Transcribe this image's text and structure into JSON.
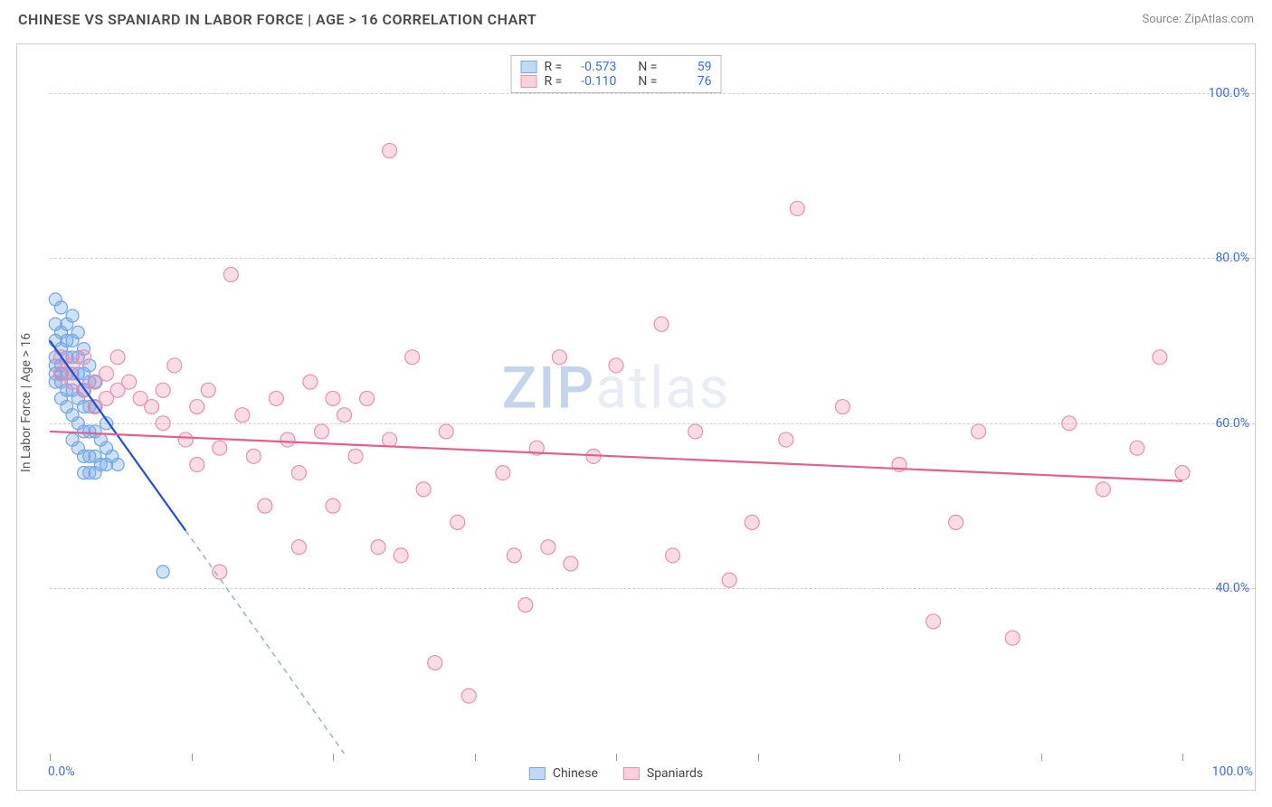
{
  "header": {
    "title": "CHINESE VS SPANIARD IN LABOR FORCE | AGE > 16 CORRELATION CHART",
    "source": "Source: ZipAtlas.com"
  },
  "watermark": {
    "zip": "ZIP",
    "atlas": "atlas"
  },
  "chart": {
    "type": "scatter",
    "background_color": "#ffffff",
    "grid_color": "#cfcfcf",
    "grid_dash": "4,4",
    "axis_label_color": "#555555",
    "tick_label_color": "#3b6fd6",
    "tick_label_fontsize": 14,
    "yaxis_title": "In Labor Force | Age > 16",
    "xlim": [
      0,
      100
    ],
    "ylim": [
      20,
      105
    ],
    "xtick_positions": [
      0,
      12.5,
      25,
      37.5,
      50,
      62.5,
      75,
      87.5,
      100
    ],
    "xtick_labels": {
      "0": "0.0%",
      "100": "100.0%"
    },
    "ytick_positions": [
      40,
      60,
      80,
      100
    ],
    "ytick_labels": [
      "40.0%",
      "60.0%",
      "80.0%",
      "100.0%"
    ],
    "series": [
      {
        "key": "chinese",
        "label": "Chinese",
        "marker_fill": "rgba(120,170,235,0.35)",
        "marker_stroke": "#6fa6e8",
        "marker_r": 7,
        "trend_color": "#1f4fd6",
        "trend_width": 2.2,
        "trend_dash_color": "#8fb6c6",
        "R": "-0.573",
        "N": "59",
        "trend": {
          "x1": 0,
          "y1": 70,
          "x2": 12,
          "y2": 47
        },
        "trend_dash": {
          "x1": 12,
          "y1": 47,
          "x2": 26,
          "y2": 20
        },
        "points": [
          [
            0.5,
            75
          ],
          [
            0.5,
            72
          ],
          [
            0.5,
            70
          ],
          [
            0.5,
            68
          ],
          [
            0.5,
            67
          ],
          [
            0.5,
            66
          ],
          [
            0.5,
            65
          ],
          [
            1,
            74
          ],
          [
            1,
            71
          ],
          [
            1,
            69
          ],
          [
            1,
            67
          ],
          [
            1,
            66
          ],
          [
            1,
            65
          ],
          [
            1,
            63
          ],
          [
            1.5,
            72
          ],
          [
            1.5,
            70
          ],
          [
            1.5,
            68
          ],
          [
            1.5,
            66
          ],
          [
            1.5,
            64
          ],
          [
            1.5,
            62
          ],
          [
            2,
            73
          ],
          [
            2,
            70
          ],
          [
            2,
            68
          ],
          [
            2,
            66
          ],
          [
            2,
            64
          ],
          [
            2,
            61
          ],
          [
            2,
            58
          ],
          [
            2.5,
            71
          ],
          [
            2.5,
            68
          ],
          [
            2.5,
            66
          ],
          [
            2.5,
            63
          ],
          [
            2.5,
            60
          ],
          [
            2.5,
            57
          ],
          [
            3,
            69
          ],
          [
            3,
            66
          ],
          [
            3,
            64
          ],
          [
            3,
            62
          ],
          [
            3,
            59
          ],
          [
            3,
            56
          ],
          [
            3,
            54
          ],
          [
            3.5,
            67
          ],
          [
            3.5,
            65
          ],
          [
            3.5,
            62
          ],
          [
            3.5,
            59
          ],
          [
            3.5,
            56
          ],
          [
            3.5,
            54
          ],
          [
            4,
            65
          ],
          [
            4,
            62
          ],
          [
            4,
            59
          ],
          [
            4,
            56
          ],
          [
            4,
            54
          ],
          [
            4.5,
            58
          ],
          [
            4.5,
            55
          ],
          [
            5,
            60
          ],
          [
            5,
            57
          ],
          [
            5,
            55
          ],
          [
            5.5,
            56
          ],
          [
            6,
            55
          ],
          [
            10,
            42
          ]
        ]
      },
      {
        "key": "spaniards",
        "label": "Spaniards",
        "marker_fill": "rgba(240,140,170,0.30)",
        "marker_stroke": "#ea8fb0",
        "marker_r": 8,
        "trend_color": "#e85c8f",
        "trend_width": 2.2,
        "R": "-0.110",
        "N": "76",
        "trend": {
          "x1": 0,
          "y1": 59,
          "x2": 100,
          "y2": 53
        },
        "points": [
          [
            1,
            68
          ],
          [
            1,
            66
          ],
          [
            2,
            67
          ],
          [
            2,
            65
          ],
          [
            3,
            68
          ],
          [
            3,
            64
          ],
          [
            4,
            65
          ],
          [
            4,
            62
          ],
          [
            5,
            66
          ],
          [
            5,
            63
          ],
          [
            6,
            68
          ],
          [
            6,
            64
          ],
          [
            7,
            65
          ],
          [
            8,
            63
          ],
          [
            9,
            62
          ],
          [
            10,
            64
          ],
          [
            10,
            60
          ],
          [
            11,
            67
          ],
          [
            12,
            58
          ],
          [
            13,
            62
          ],
          [
            13,
            55
          ],
          [
            14,
            64
          ],
          [
            15,
            57
          ],
          [
            15,
            42
          ],
          [
            16,
            78
          ],
          [
            17,
            61
          ],
          [
            18,
            56
          ],
          [
            19,
            50
          ],
          [
            20,
            63
          ],
          [
            21,
            58
          ],
          [
            22,
            54
          ],
          [
            22,
            45
          ],
          [
            23,
            65
          ],
          [
            24,
            59
          ],
          [
            25,
            63
          ],
          [
            25,
            50
          ],
          [
            26,
            61
          ],
          [
            27,
            56
          ],
          [
            28,
            63
          ],
          [
            29,
            45
          ],
          [
            30,
            93
          ],
          [
            30,
            58
          ],
          [
            31,
            44
          ],
          [
            32,
            68
          ],
          [
            33,
            52
          ],
          [
            34,
            31
          ],
          [
            35,
            59
          ],
          [
            36,
            48
          ],
          [
            37,
            27
          ],
          [
            40,
            54
          ],
          [
            41,
            44
          ],
          [
            42,
            38
          ],
          [
            43,
            57
          ],
          [
            44,
            45
          ],
          [
            45,
            68
          ],
          [
            46,
            43
          ],
          [
            48,
            56
          ],
          [
            50,
            67
          ],
          [
            54,
            72
          ],
          [
            55,
            44
          ],
          [
            57,
            59
          ],
          [
            60,
            41
          ],
          [
            62,
            48
          ],
          [
            65,
            58
          ],
          [
            66,
            86
          ],
          [
            70,
            62
          ],
          [
            75,
            55
          ],
          [
            78,
            36
          ],
          [
            80,
            48
          ],
          [
            82,
            59
          ],
          [
            85,
            34
          ],
          [
            90,
            60
          ],
          [
            93,
            52
          ],
          [
            96,
            57
          ],
          [
            98,
            68
          ],
          [
            100,
            54
          ]
        ]
      }
    ],
    "legend_top": {
      "swatch_blue_fill": "rgba(120,170,235,0.45)",
      "swatch_blue_stroke": "#6fa6e8",
      "swatch_pink_fill": "rgba(240,140,170,0.40)",
      "swatch_pink_stroke": "#ea8fb0",
      "R_label": "R =",
      "N_label": "N ="
    },
    "legend_bottom": {
      "items": [
        {
          "label": "Chinese",
          "fill": "rgba(120,170,235,0.45)",
          "stroke": "#6fa6e8"
        },
        {
          "label": "Spaniards",
          "fill": "rgba(240,140,170,0.40)",
          "stroke": "#ea8fb0"
        }
      ]
    }
  }
}
